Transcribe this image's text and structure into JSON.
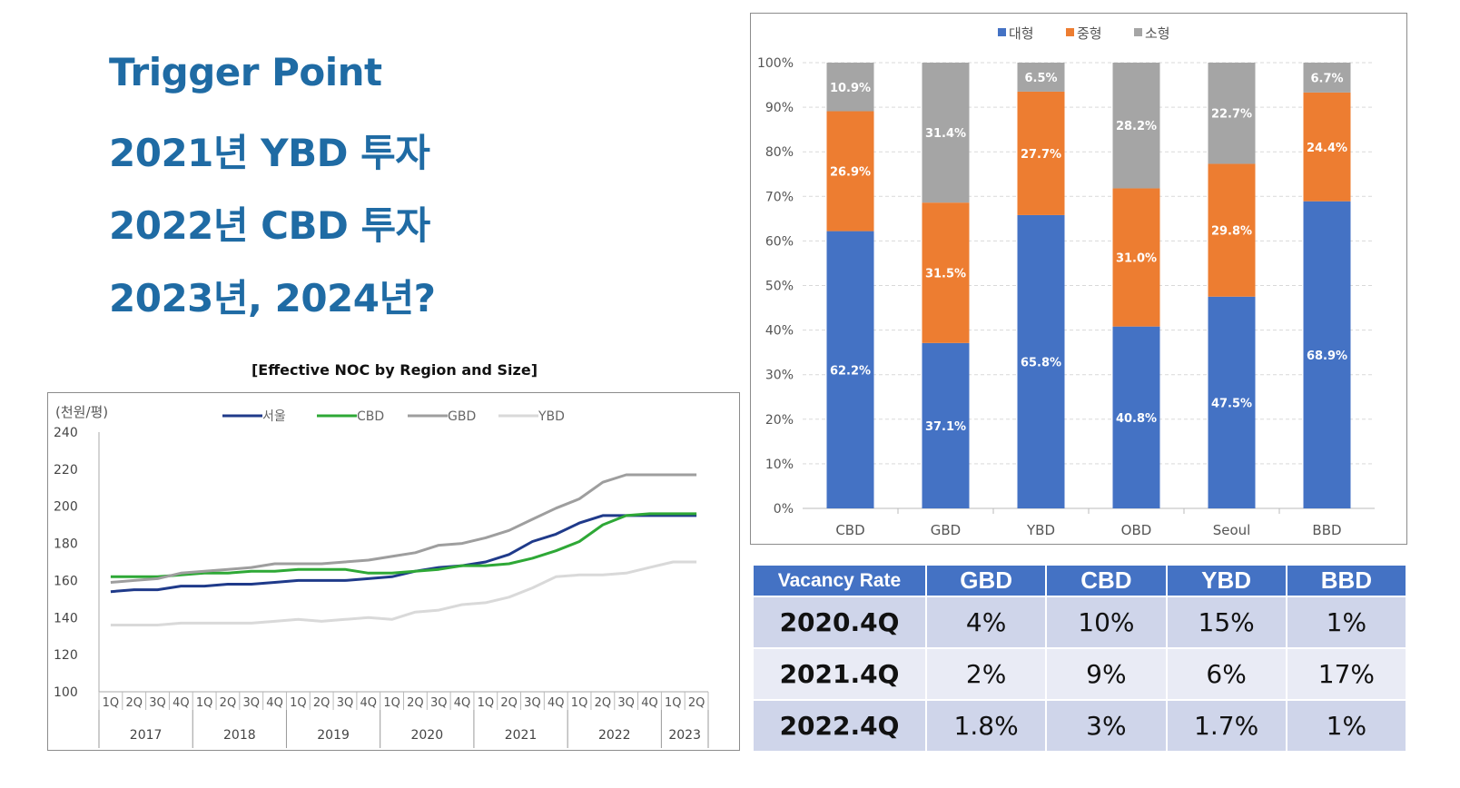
{
  "headlines": {
    "line1": "Trigger Point",
    "line2": "2021년 YBD 투자",
    "line3": "2022년 CBD 투자",
    "line4": "2023년, 2024년?"
  },
  "line_chart_title": "[Effective NOC by Region and Size]",
  "chart_data": [
    {
      "type": "line",
      "unit_label": "(천원/평)",
      "ylim": [
        100,
        240
      ],
      "yticks": [
        100,
        120,
        140,
        160,
        180,
        200,
        220,
        240
      ],
      "x": [
        "1Q",
        "2Q",
        "3Q",
        "4Q",
        "1Q",
        "2Q",
        "3Q",
        "4Q",
        "1Q",
        "2Q",
        "3Q",
        "4Q",
        "1Q",
        "2Q",
        "3Q",
        "4Q",
        "1Q",
        "2Q",
        "3Q",
        "4Q",
        "1Q",
        "2Q",
        "3Q",
        "4Q",
        "1Q",
        "2Q"
      ],
      "year_groups": [
        {
          "label": "2017",
          "count": 4
        },
        {
          "label": "2018",
          "count": 4
        },
        {
          "label": "2019",
          "count": 4
        },
        {
          "label": "2020",
          "count": 4
        },
        {
          "label": "2021",
          "count": 4
        },
        {
          "label": "2022",
          "count": 4
        },
        {
          "label": "2023",
          "count": 2
        }
      ],
      "legend_position": "top",
      "series": [
        {
          "name": "서울",
          "color": "#1f3a8a",
          "width": 3,
          "values": [
            154,
            155,
            155,
            157,
            157,
            158,
            158,
            159,
            160,
            160,
            160,
            161,
            162,
            165,
            167,
            168,
            170,
            174,
            181,
            185,
            191,
            195,
            195,
            195,
            195,
            195
          ]
        },
        {
          "name": "CBD",
          "color": "#2ea836",
          "width": 3,
          "values": [
            162,
            162,
            162,
            163,
            164,
            164,
            165,
            165,
            166,
            166,
            166,
            164,
            164,
            165,
            166,
            168,
            168,
            169,
            172,
            176,
            181,
            190,
            195,
            196,
            196,
            196
          ]
        },
        {
          "name": "GBD",
          "color": "#9e9e9e",
          "width": 3,
          "values": [
            159,
            160,
            161,
            164,
            165,
            166,
            167,
            169,
            169,
            169,
            170,
            171,
            173,
            175,
            179,
            180,
            183,
            187,
            193,
            199,
            204,
            213,
            217,
            217,
            217,
            217
          ]
        },
        {
          "name": "YBD",
          "color": "#d9d9d9",
          "width": 3,
          "values": [
            136,
            136,
            136,
            137,
            137,
            137,
            137,
            138,
            139,
            138,
            139,
            140,
            139,
            143,
            144,
            147,
            148,
            151,
            156,
            162,
            163,
            163,
            164,
            167,
            170,
            170
          ]
        }
      ]
    },
    {
      "type": "bar",
      "stacked": true,
      "percent": true,
      "categories": [
        "CBD",
        "GBD",
        "YBD",
        "OBD",
        "Seoul",
        "BBD"
      ],
      "yticks": [
        "0%",
        "10%",
        "20%",
        "30%",
        "40%",
        "50%",
        "60%",
        "70%",
        "80%",
        "90%",
        "100%"
      ],
      "legend_position": "top",
      "series": [
        {
          "name": "대형",
          "color": "#4472c4",
          "values": [
            62.2,
            37.1,
            65.8,
            40.8,
            47.5,
            68.9
          ],
          "labels": [
            "62.2%",
            "37.1%",
            "65.8%",
            "40.8%",
            "47.5%",
            "68.9%"
          ]
        },
        {
          "name": "중형",
          "color": "#ed7d31",
          "values": [
            26.9,
            31.5,
            27.7,
            31.0,
            29.8,
            24.4
          ],
          "labels": [
            "26.9%",
            "31.5%",
            "27.7%",
            "31.0%",
            "29.8%",
            "24.4%"
          ]
        },
        {
          "name": "소형",
          "color": "#a5a5a5",
          "values": [
            10.9,
            31.4,
            6.5,
            28.2,
            22.7,
            6.7
          ],
          "labels": [
            "10.9%",
            "31.4%",
            "6.5%",
            "28.2%",
            "22.7%",
            "6.7%"
          ]
        }
      ]
    }
  ],
  "vacancy_table": {
    "header": [
      "Vacancy Rate",
      "GBD",
      "CBD",
      "YBD",
      "BBD"
    ],
    "rows": [
      [
        "2020.4Q",
        "4%",
        "10%",
        "15%",
        "1%"
      ],
      [
        "2021.4Q",
        "2%",
        "9%",
        "6%",
        "17%"
      ],
      [
        "2022.4Q",
        "1.8%",
        "3%",
        "1.7%",
        "1%"
      ]
    ]
  }
}
